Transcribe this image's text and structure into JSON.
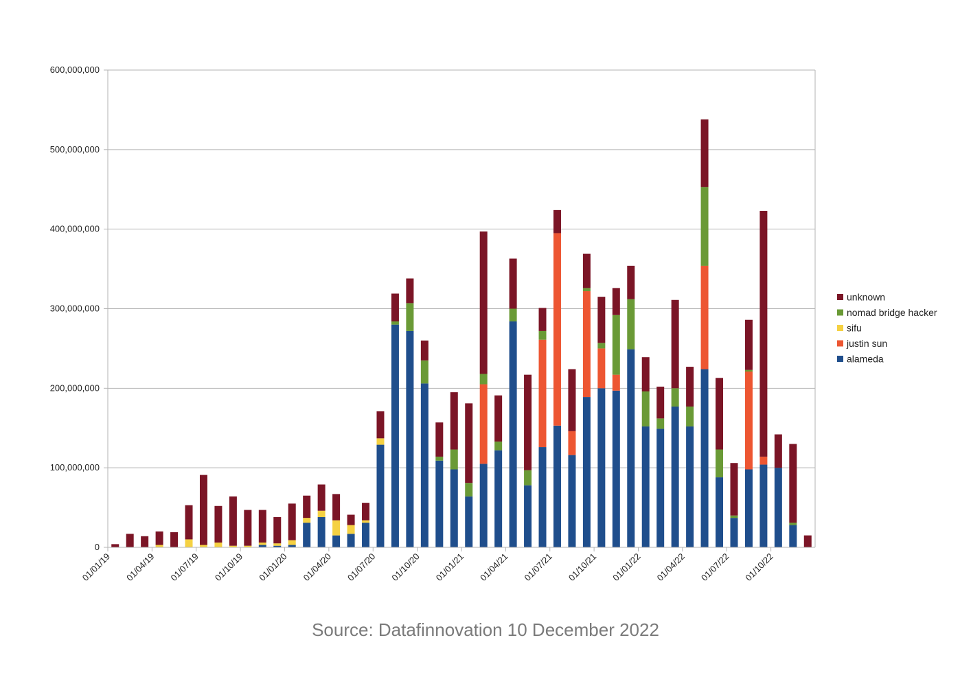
{
  "caption": "Source: Datafinnovation 10 December 2022",
  "chart_data": {
    "type": "bar",
    "stacked": true,
    "title": "",
    "xlabel": "",
    "ylabel": "",
    "ylim": [
      0,
      600000000
    ],
    "yticks": [
      0,
      100000000,
      200000000,
      300000000,
      400000000,
      500000000,
      600000000
    ],
    "ytick_labels": [
      "0",
      "100,000,000",
      "200,000,000",
      "300,000,000",
      "400,000,000",
      "500,000,000",
      "600,000,000"
    ],
    "xtick_labels": [
      "01/01/19",
      "01/04/19",
      "01/07/19",
      "01/10/19",
      "01/01/20",
      "01/04/20",
      "01/07/20",
      "01/10/20",
      "01/01/21",
      "01/04/21",
      "01/07/21",
      "01/10/21",
      "01/01/22",
      "01/04/22",
      "01/07/22",
      "01/10/22"
    ],
    "grid": true,
    "legend_position": "right",
    "categories": [
      "Jan 2019",
      "Feb 2019",
      "Mar 2019",
      "Apr 2019",
      "May 2019",
      "Jun 2019",
      "Jul 2019",
      "Aug 2019",
      "Sep 2019",
      "Oct 2019",
      "Nov 2019",
      "Dec 2019",
      "Jan 2020",
      "Feb 2020",
      "Mar 2020",
      "Apr 2020",
      "May 2020",
      "Jun 2020",
      "Jul 2020",
      "Aug 2020",
      "Sep 2020",
      "Oct 2020",
      "Nov 2020",
      "Dec 2020",
      "Jan 2021",
      "Feb 2021",
      "Mar 2021",
      "Apr 2021",
      "May 2021",
      "Jun 2021",
      "Jul 2021",
      "Aug 2021",
      "Sep 2021",
      "Oct 2021",
      "Nov 2021",
      "Dec 2021",
      "Jan 2022",
      "Feb 2022",
      "Mar 2022",
      "Apr 2022",
      "May 2022",
      "Jun 2022",
      "Jul 2022",
      "Aug 2022",
      "Sep 2022",
      "Oct 2022",
      "Nov 2022",
      "Dec 2022"
    ],
    "series": [
      {
        "name": "alameda",
        "color": "#1f4e8c",
        "values": [
          0,
          0,
          0,
          0,
          0,
          0,
          0,
          0,
          0,
          0,
          3000000,
          2000000,
          3000000,
          31000000,
          38000000,
          15000000,
          17000000,
          31000000,
          129000000,
          280000000,
          272000000,
          206000000,
          109000000,
          98000000,
          64000000,
          105000000,
          122000000,
          284000000,
          78000000,
          126000000,
          153000000,
          116000000,
          189000000,
          200000000,
          197000000,
          249000000,
          152000000,
          149000000,
          177000000,
          152000000,
          224000000,
          88000000,
          37000000,
          98000000,
          104000000,
          100000000,
          28000000,
          0
        ]
      },
      {
        "name": "justin sun",
        "color": "#ed5632",
        "values": [
          0,
          0,
          0,
          0,
          0,
          0,
          0,
          0,
          0,
          0,
          0,
          0,
          0,
          0,
          0,
          0,
          0,
          0,
          0,
          0,
          0,
          0,
          0,
          0,
          0,
          100000000,
          0,
          0,
          0,
          135000000,
          242000000,
          30000000,
          133000000,
          50000000,
          20000000,
          0,
          0,
          0,
          0,
          0,
          130000000,
          0,
          0,
          123000000,
          10000000,
          0,
          0,
          0
        ]
      },
      {
        "name": "sifu",
        "color": "#f5d142",
        "values": [
          0,
          0,
          0,
          3000000,
          0,
          10000000,
          3000000,
          6000000,
          2000000,
          2000000,
          3000000,
          3000000,
          6000000,
          6000000,
          8000000,
          19000000,
          11000000,
          3000000,
          8000000,
          0,
          0,
          0,
          0,
          0,
          0,
          0,
          0,
          0,
          0,
          0,
          0,
          0,
          0,
          0,
          0,
          0,
          0,
          0,
          0,
          0,
          0,
          0,
          0,
          0,
          0,
          0,
          0,
          0
        ]
      },
      {
        "name": "nomad bridge hacker",
        "color": "#6a9a36",
        "values": [
          0,
          0,
          0,
          0,
          0,
          0,
          0,
          0,
          0,
          0,
          0,
          0,
          0,
          0,
          0,
          0,
          0,
          0,
          0,
          4000000,
          35000000,
          29000000,
          5000000,
          25000000,
          17000000,
          13000000,
          11000000,
          16000000,
          19000000,
          11000000,
          0,
          0,
          4000000,
          7000000,
          75000000,
          63000000,
          44000000,
          13000000,
          23000000,
          25000000,
          99000000,
          35000000,
          3000000,
          2000000,
          0,
          0,
          3000000,
          0
        ]
      },
      {
        "name": "unknown",
        "color": "#7b1526",
        "values": [
          4000000,
          17000000,
          14000000,
          17000000,
          19000000,
          43000000,
          88000000,
          46000000,
          62000000,
          45000000,
          41000000,
          33000000,
          46000000,
          28000000,
          33000000,
          33000000,
          13000000,
          22000000,
          34000000,
          35000000,
          31000000,
          25000000,
          43000000,
          72000000,
          100000000,
          179000000,
          58000000,
          63000000,
          120000000,
          29000000,
          29000000,
          78000000,
          43000000,
          58000000,
          34000000,
          42000000,
          43000000,
          40000000,
          111000000,
          50000000,
          85000000,
          90000000,
          66000000,
          63000000,
          309000000,
          42000000,
          99000000,
          15000000
        ]
      }
    ]
  }
}
